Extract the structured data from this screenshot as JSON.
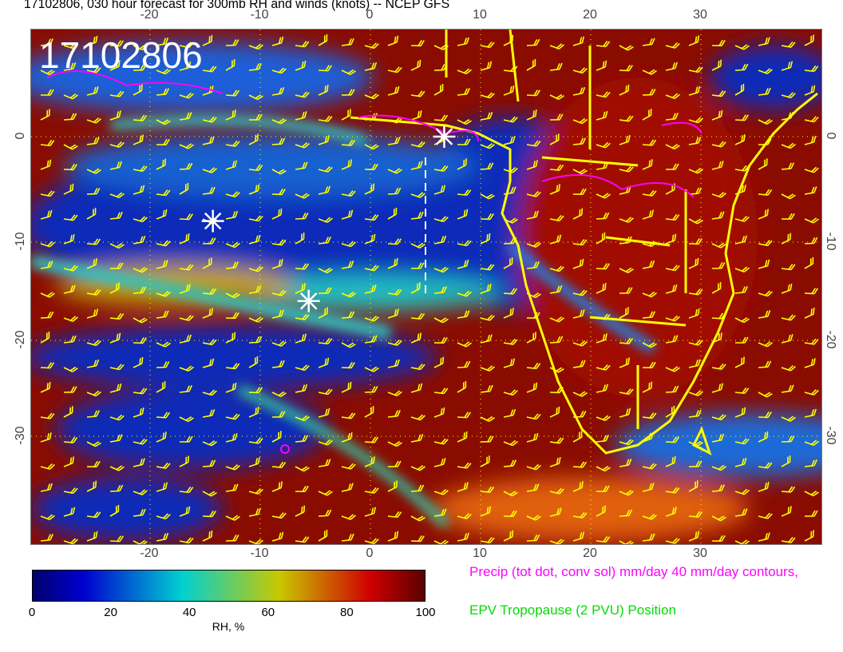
{
  "title": "17102806, 030 hour forecast for 300mb RH and winds (knots) -- NCEP GFS",
  "map": {
    "date_stamp": "17102806",
    "lon_range": [
      -30.5,
      41
    ],
    "lat_range": [
      11,
      -40
    ],
    "lon_ticks": [
      "-20",
      "-10",
      "0",
      "10",
      "20",
      "30"
    ],
    "lat_ticks": [
      "0",
      "-10",
      "-20",
      "-30"
    ],
    "star_markers": [
      {
        "lon": -14.3,
        "lat": -8
      },
      {
        "lon": -5.6,
        "lat": -16
      },
      {
        "lon": 6.7,
        "lat": 0
      }
    ],
    "coastline_color": "#ffff00",
    "barb_color": "#ffff00",
    "precip_contour_color": "#ff00ff"
  },
  "colorbar": {
    "ticks": [
      "0",
      "20",
      "40",
      "60",
      "80",
      "100"
    ],
    "label": "RH, %",
    "colors": [
      "#00006e",
      "#0000d0",
      "#00d0d0",
      "#c8c800",
      "#d00000",
      "#5a0000"
    ]
  },
  "legend": {
    "precip": "Precip (tot dot, conv sol) mm/day 40 mm/day contours,",
    "tropopause": "EPV Tropopause (2 PVU) Position"
  }
}
